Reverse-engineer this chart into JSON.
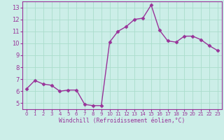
{
  "x": [
    0,
    1,
    2,
    3,
    4,
    5,
    6,
    7,
    8,
    9,
    10,
    11,
    12,
    13,
    14,
    15,
    16,
    17,
    18,
    19,
    20,
    21,
    22,
    23
  ],
  "y": [
    6.2,
    6.9,
    6.6,
    6.5,
    6.0,
    6.1,
    6.1,
    4.9,
    4.8,
    4.8,
    10.1,
    11.0,
    11.4,
    12.0,
    12.1,
    13.2,
    11.1,
    10.2,
    10.1,
    10.6,
    10.6,
    10.3,
    9.8,
    9.4
  ],
  "line_color": "#993399",
  "marker": "D",
  "marker_size": 2.5,
  "bg_color": "#cceee8",
  "grid_color": "#aaddcc",
  "xlabel": "Windchill (Refroidissement éolien,°C)",
  "xlabel_color": "#993399",
  "tick_color": "#993399",
  "ylim": [
    4.5,
    13.5
  ],
  "xlim": [
    -0.5,
    23.5
  ],
  "yticks": [
    5,
    6,
    7,
    8,
    9,
    10,
    11,
    12,
    13
  ],
  "xticks": [
    0,
    1,
    2,
    3,
    4,
    5,
    6,
    7,
    8,
    9,
    10,
    11,
    12,
    13,
    14,
    15,
    16,
    17,
    18,
    19,
    20,
    21,
    22,
    23
  ],
  "spine_color": "#993399",
  "line_width": 1.0
}
